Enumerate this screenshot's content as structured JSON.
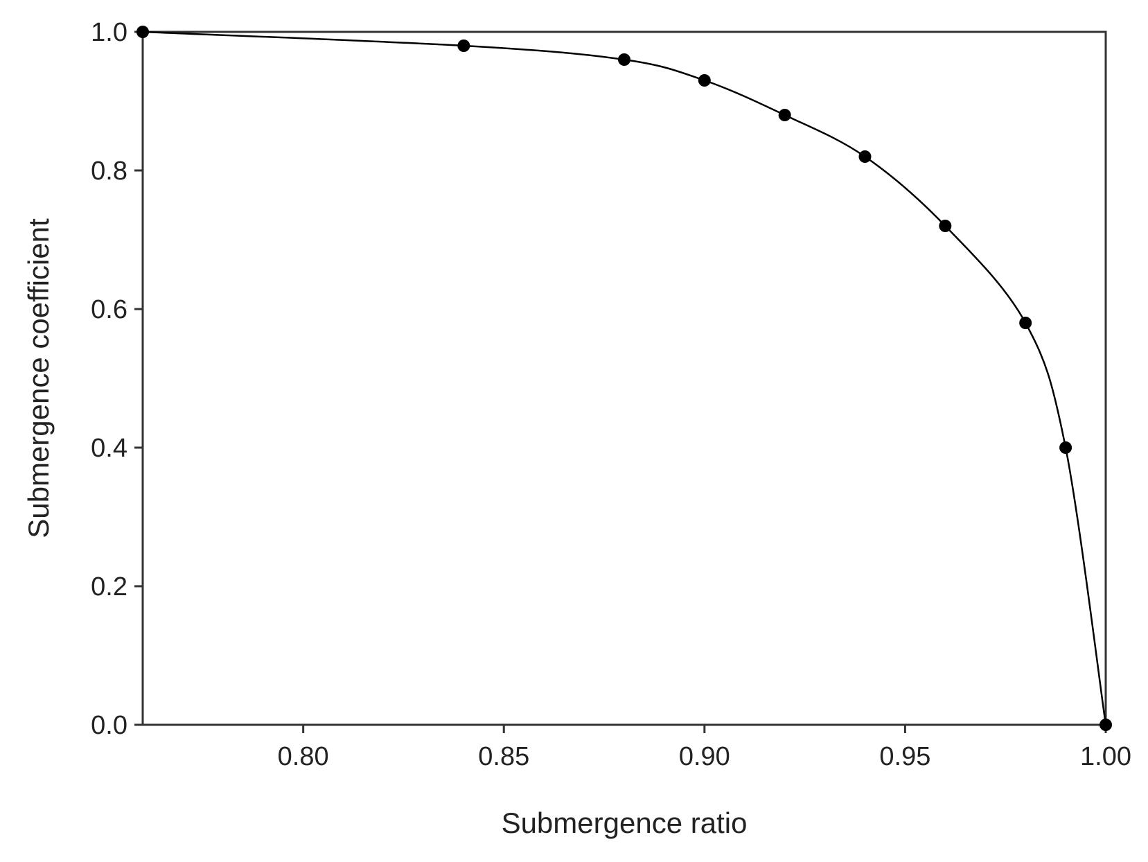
{
  "chart_data": {
    "type": "line",
    "title": "",
    "xlabel": "Submergence ratio",
    "ylabel": "Submergence coefficient",
    "xlim": [
      0.76,
      1.0
    ],
    "ylim": [
      0.0,
      1.0
    ],
    "xticks": [
      0.8,
      0.85,
      0.9,
      0.95,
      1.0
    ],
    "xtick_labels": [
      "0.80",
      "0.85",
      "0.90",
      "0.95",
      "1.00"
    ],
    "yticks": [
      0.0,
      0.2,
      0.4,
      0.6,
      0.8,
      1.0
    ],
    "ytick_labels": [
      "0.0",
      "0.2",
      "0.4",
      "0.6",
      "0.8",
      "1.0"
    ],
    "grid": false,
    "legend": "none",
    "series": [
      {
        "x": [
          0.76,
          0.84,
          0.88,
          0.9,
          0.92,
          0.94,
          0.96,
          0.98,
          0.99,
          1.0
        ],
        "y": [
          1.0,
          0.98,
          0.96,
          0.93,
          0.88,
          0.82,
          0.72,
          0.58,
          0.4,
          0.0
        ],
        "color": "#000000",
        "marker": "circle"
      }
    ]
  }
}
